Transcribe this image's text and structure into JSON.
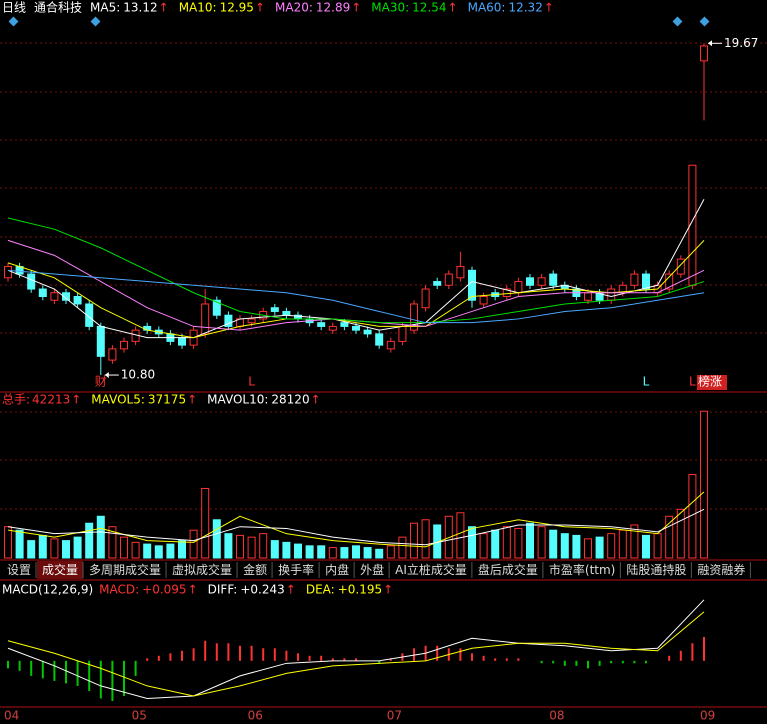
{
  "header": {
    "period": "日线",
    "name": "通合科技",
    "up_arrow": "↑"
  },
  "chart_data": [
    {
      "type": "candlestick",
      "up_color": "#ff3232",
      "down_color": "#54fcfc",
      "ylim": [
        10.4,
        20.4
      ],
      "open": [
        13.4,
        13.7,
        13.5,
        13.1,
        12.8,
        13.0,
        12.9,
        12.7,
        12.1,
        11.2,
        11.5,
        11.7,
        12.1,
        12.0,
        11.9,
        11.8,
        11.6,
        11.9,
        12.8,
        12.4,
        12.1,
        12.2,
        12.3,
        12.6,
        12.5,
        12.4,
        12.3,
        12.2,
        12.0,
        12.2,
        12.1,
        12.0,
        11.9,
        11.5,
        11.7,
        12.0,
        12.6,
        13.3,
        13.2,
        13.4,
        13.6,
        12.7,
        13.0,
        12.9,
        13.0,
        13.4,
        13.2,
        13.5,
        13.2,
        13.1,
        12.8,
        13.0,
        12.8,
        13.0,
        13.2,
        13.5,
        13.0,
        13.1,
        13.5,
        13.2,
        19.2
      ],
      "high": [
        13.8,
        13.8,
        13.6,
        13.2,
        13.1,
        13.1,
        13.0,
        12.8,
        12.2,
        11.6,
        11.8,
        12.1,
        12.2,
        12.1,
        12.0,
        11.9,
        12.1,
        13.1,
        12.9,
        12.5,
        12.4,
        12.4,
        12.6,
        12.7,
        12.6,
        12.5,
        12.4,
        12.3,
        12.2,
        12.3,
        12.2,
        12.1,
        12.0,
        11.8,
        12.2,
        12.8,
        13.2,
        13.4,
        13.6,
        14.1,
        13.7,
        13.0,
        13.1,
        13.2,
        13.4,
        13.5,
        13.5,
        13.6,
        13.3,
        13.2,
        13.1,
        13.1,
        13.2,
        13.3,
        13.6,
        13.6,
        13.3,
        13.6,
        14.0,
        16.41,
        19.67
      ],
      "low": [
        13.3,
        13.4,
        13.0,
        12.8,
        12.7,
        12.7,
        12.6,
        12.0,
        10.8,
        11.1,
        11.4,
        11.6,
        11.9,
        11.8,
        11.6,
        11.5,
        11.5,
        11.8,
        12.3,
        12.0,
        12.0,
        12.1,
        12.2,
        12.4,
        12.3,
        12.2,
        12.1,
        12.0,
        11.9,
        12.0,
        11.9,
        11.8,
        11.5,
        11.4,
        11.6,
        11.9,
        12.5,
        13.1,
        13.1,
        13.3,
        12.6,
        12.6,
        12.8,
        12.8,
        12.9,
        13.1,
        13.1,
        13.1,
        13.0,
        12.8,
        12.7,
        12.7,
        12.7,
        12.9,
        13.1,
        13.0,
        12.9,
        13.0,
        13.4,
        13.1,
        17.61
      ],
      "close": [
        13.7,
        13.5,
        13.1,
        12.9,
        13.0,
        12.8,
        12.7,
        12.1,
        11.3,
        11.5,
        11.7,
        12.0,
        12.0,
        11.9,
        11.7,
        11.6,
        12.0,
        12.7,
        12.4,
        12.1,
        12.3,
        12.3,
        12.5,
        12.5,
        12.4,
        12.3,
        12.2,
        12.1,
        12.1,
        12.1,
        12.0,
        11.9,
        11.6,
        11.7,
        12.1,
        12.7,
        13.1,
        13.2,
        13.5,
        13.7,
        12.8,
        12.9,
        12.9,
        13.1,
        13.3,
        13.2,
        13.4,
        13.2,
        13.1,
        12.9,
        13.0,
        12.8,
        13.1,
        13.2,
        13.5,
        13.1,
        13.2,
        13.5,
        13.9,
        16.41,
        19.6
      ],
      "series": [
        {
          "name": "MA5:",
          "value": 13.12,
          "color": "#ffffff",
          "x": [
            0,
            4,
            8,
            12,
            16,
            20,
            24,
            28,
            32,
            36,
            40,
            44,
            48,
            52,
            56,
            60
          ],
          "values": [
            13.6,
            13.1,
            12.1,
            11.8,
            11.8,
            12.3,
            12.4,
            12.3,
            12.0,
            12.2,
            13.3,
            13.0,
            13.2,
            12.9,
            13.2,
            15.5
          ]
        },
        {
          "name": "MA10:",
          "value": 12.95,
          "color": "#ffff00",
          "x": [
            0,
            4,
            8,
            12,
            16,
            20,
            24,
            28,
            32,
            36,
            40,
            44,
            48,
            52,
            56,
            60
          ],
          "values": [
            13.8,
            13.4,
            12.6,
            12.0,
            11.8,
            12.1,
            12.3,
            12.3,
            12.1,
            12.1,
            12.9,
            13.0,
            13.1,
            13.0,
            13.1,
            14.4
          ]
        },
        {
          "name": "MA20:",
          "value": 12.89,
          "color": "#ff80ff",
          "x": [
            0,
            4,
            8,
            12,
            16,
            20,
            24,
            28,
            32,
            36,
            40,
            44,
            48,
            52,
            56,
            60
          ],
          "values": [
            14.4,
            14.0,
            13.3,
            12.6,
            12.1,
            12.0,
            12.2,
            12.3,
            12.2,
            12.1,
            12.5,
            12.9,
            13.0,
            13.0,
            13.0,
            13.6
          ]
        },
        {
          "name": "MA30:",
          "value": 12.54,
          "color": "#00e000",
          "x": [
            0,
            4,
            8,
            12,
            16,
            20,
            24,
            28,
            32,
            36,
            40,
            44,
            48,
            52,
            56,
            60
          ],
          "values": [
            15.0,
            14.7,
            14.2,
            13.6,
            13.0,
            12.5,
            12.3,
            12.3,
            12.2,
            12.2,
            12.3,
            12.5,
            12.7,
            12.8,
            12.9,
            13.3
          ]
        },
        {
          "name": "MA60:",
          "value": 12.32,
          "color": "#4aa8ff",
          "x": [
            0,
            4,
            8,
            12,
            16,
            20,
            24,
            28,
            32,
            36,
            40,
            44,
            48,
            52,
            56,
            60
          ],
          "values": [
            13.6,
            13.5,
            13.4,
            13.3,
            13.2,
            13.1,
            13.0,
            12.8,
            12.5,
            12.2,
            12.2,
            12.3,
            12.5,
            12.6,
            12.8,
            13.0
          ]
        }
      ],
      "annotations": [
        {
          "value": 19.67,
          "label": "19.67"
        },
        {
          "value": 10.8,
          "label": "10.80"
        }
      ],
      "markers": [
        {
          "text": "财",
          "index": 8,
          "color": "#ff3232"
        },
        {
          "text": "L",
          "index": 21,
          "color": "#ff3232"
        },
        {
          "text": "L",
          "index": 55,
          "color": "#54fcfc"
        },
        {
          "text": "L",
          "index": 59,
          "color": "#ff3232"
        },
        {
          "text": "榜涨",
          "index": 60,
          "color": "#ffffff",
          "background": "#d02020"
        }
      ]
    },
    {
      "type": "bar",
      "ylim": [
        0,
        44000
      ],
      "total": {
        "label": "总手:",
        "value": 42213,
        "color": "#ff3232"
      },
      "values": [
        9000,
        8000,
        5000,
        6500,
        5500,
        5000,
        6000,
        10000,
        12000,
        9000,
        6000,
        4500,
        4000,
        3500,
        4000,
        5000,
        8000,
        20000,
        11000,
        7000,
        6500,
        6000,
        7000,
        5000,
        4500,
        4000,
        3500,
        3500,
        3000,
        3000,
        3500,
        3000,
        2500,
        3500,
        6000,
        10000,
        11000,
        9500,
        12000,
        13000,
        9000,
        7000,
        8000,
        9000,
        8500,
        10000,
        9000,
        8000,
        7000,
        6500,
        5500,
        6000,
        7000,
        8000,
        9500,
        6500,
        7000,
        12000,
        14000,
        24000,
        42213
      ],
      "series": [
        {
          "name": "MAVOL5:",
          "value": 37175,
          "color": "#ffff00",
          "x": [
            0,
            4,
            8,
            12,
            16,
            20,
            24,
            28,
            32,
            36,
            40,
            44,
            48,
            52,
            56,
            60
          ],
          "values": [
            8000,
            6000,
            8500,
            5000,
            4500,
            12000,
            7000,
            5000,
            4000,
            3200,
            8500,
            11000,
            9000,
            8500,
            7000,
            19000
          ]
        },
        {
          "name": "MAVOL10:",
          "value": 28120,
          "color": "#ffffff",
          "x": [
            0,
            4,
            8,
            12,
            16,
            20,
            24,
            28,
            32,
            36,
            40,
            44,
            48,
            52,
            56,
            60
          ],
          "values": [
            9000,
            7000,
            7500,
            6000,
            5000,
            9000,
            8500,
            6000,
            4500,
            3800,
            6500,
            9500,
            9500,
            9000,
            7500,
            14000
          ]
        }
      ]
    },
    {
      "type": "macd",
      "title": "MACD(12,26,9)",
      "ylim": [
        -0.18,
        0.31
      ],
      "categories": [
        "04",
        null,
        null,
        null,
        null,
        null,
        null,
        null,
        null,
        null,
        null,
        "05",
        null,
        null,
        null,
        null,
        null,
        null,
        null,
        null,
        null,
        "06",
        null,
        null,
        null,
        null,
        null,
        null,
        null,
        null,
        null,
        null,
        null,
        "07",
        null,
        null,
        null,
        null,
        null,
        null,
        null,
        null,
        null,
        null,
        null,
        null,
        null,
        "08",
        null,
        null,
        null,
        null,
        null,
        null,
        null,
        null,
        null,
        null,
        null,
        null,
        "09"
      ],
      "histogram": {
        "name": "MACD:",
        "value": 0.095,
        "value_label": "+0.095",
        "up_color": "#ff3232",
        "down_color": "#00c800",
        "values": [
          -0.03,
          -0.04,
          -0.06,
          -0.07,
          -0.08,
          -0.09,
          -0.1,
          -0.12,
          -0.15,
          -0.16,
          -0.14,
          -0.06,
          0.01,
          0.02,
          0.03,
          0.04,
          0.05,
          0.08,
          0.07,
          0.07,
          0.06,
          0.06,
          0.05,
          0.05,
          0.04,
          0.03,
          0.02,
          0.02,
          0.01,
          0.01,
          0.01,
          0,
          -0.01,
          0.01,
          0.03,
          0.05,
          0.06,
          0.06,
          0.05,
          0.05,
          0.03,
          0.02,
          0.01,
          0.01,
          0.01,
          0,
          -0.01,
          -0.01,
          -0.02,
          -0.02,
          -0.03,
          -0.02,
          -0.01,
          -0.01,
          -0.01,
          -0.01,
          0,
          0.02,
          0.04,
          0.07,
          0.095
        ]
      },
      "series": [
        {
          "name": "DIFF:",
          "value": 0.243,
          "value_label": "+0.243",
          "color": "#ffffff",
          "x": [
            0,
            4,
            8,
            12,
            16,
            20,
            24,
            28,
            32,
            36,
            40,
            44,
            48,
            52,
            56,
            60
          ],
          "values": [
            0.05,
            -0.02,
            -0.1,
            -0.15,
            -0.14,
            -0.06,
            -0.01,
            0,
            0,
            0.03,
            0.09,
            0.07,
            0.06,
            0.04,
            0.05,
            0.243
          ]
        },
        {
          "name": "DEA:",
          "value": 0.195,
          "value_label": "+0.195",
          "color": "#ffff00",
          "x": [
            0,
            4,
            8,
            12,
            16,
            20,
            24,
            28,
            32,
            36,
            40,
            44,
            48,
            52,
            56,
            60
          ],
          "values": [
            0.08,
            0.03,
            -0.03,
            -0.1,
            -0.14,
            -0.1,
            -0.05,
            -0.02,
            -0.01,
            0,
            0.05,
            0.07,
            0.07,
            0.05,
            0.04,
            0.195
          ]
        }
      ]
    }
  ],
  "tabs": {
    "items": [
      "设置",
      "成交量",
      "多周期成交量",
      "虚拟成交量",
      "金额",
      "换手率",
      "内盘",
      "外盘",
      "AI立桩成交量",
      "盘后成交量",
      "市盈率(ttm)",
      "陆股通持股",
      "融资融券"
    ],
    "active": 1
  }
}
